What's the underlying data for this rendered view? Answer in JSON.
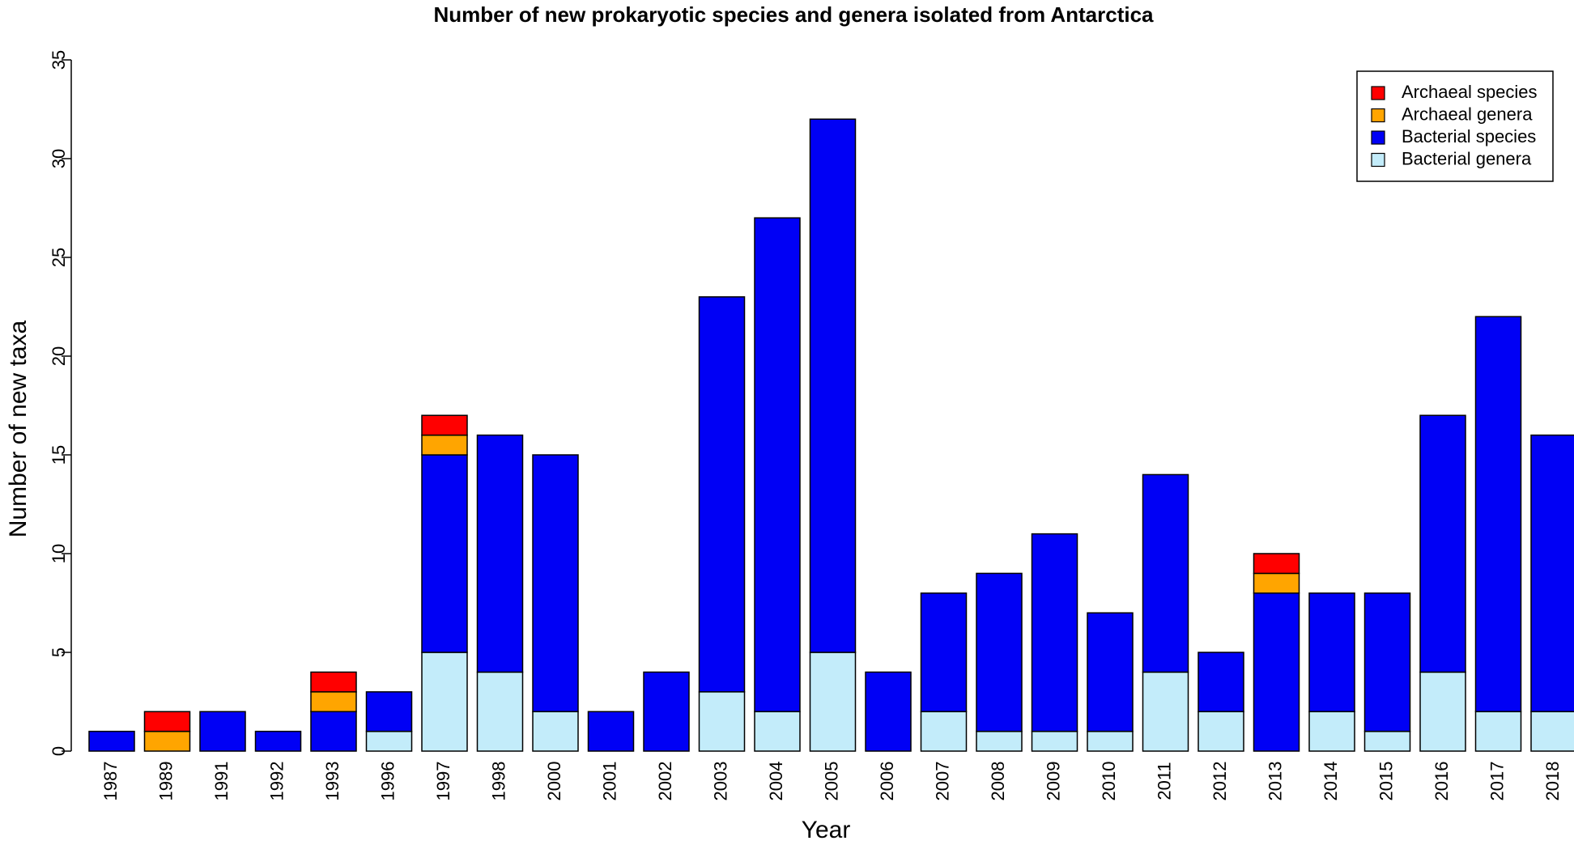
{
  "chart_data": {
    "type": "bar",
    "stacked": true,
    "title": "Number of new prokaryotic species and genera isolated from Antarctica",
    "xlabel": "Year",
    "ylabel": "Number of new taxa",
    "ylim": [
      0,
      35
    ],
    "yticks": [
      0,
      5,
      10,
      15,
      20,
      25,
      30,
      35
    ],
    "grid": false,
    "legend_position": "top-right",
    "categories": [
      "1987",
      "1989",
      "1991",
      "1992",
      "1993",
      "1996",
      "1997",
      "1998",
      "2000",
      "2001",
      "2002",
      "2003",
      "2004",
      "2005",
      "2006",
      "2007",
      "2008",
      "2009",
      "2010",
      "2011",
      "2012",
      "2013",
      "2014",
      "2015",
      "2016",
      "2017",
      "2018"
    ],
    "series": [
      {
        "name": "Bacterial genera",
        "color": "#c3ecfa",
        "values": [
          0,
          0,
          0,
          0,
          0,
          1,
          5,
          4,
          2,
          0,
          0,
          3,
          2,
          5,
          0,
          2,
          1,
          1,
          1,
          4,
          2,
          0,
          2,
          1,
          4,
          2,
          2
        ]
      },
      {
        "name": "Bacterial species",
        "color": "#0000f5",
        "values": [
          1,
          0,
          2,
          1,
          2,
          2,
          10,
          12,
          13,
          2,
          4,
          20,
          25,
          27,
          4,
          6,
          8,
          10,
          6,
          10,
          3,
          8,
          6,
          7,
          13,
          20,
          14
        ]
      },
      {
        "name": "Archaeal genera",
        "color": "#ffa500",
        "values": [
          0,
          1,
          0,
          0,
          1,
          0,
          1,
          0,
          0,
          0,
          0,
          0,
          0,
          0,
          0,
          0,
          0,
          0,
          0,
          0,
          0,
          1,
          0,
          0,
          0,
          0,
          0
        ]
      },
      {
        "name": "Archaeal species",
        "color": "#ff0000",
        "values": [
          0,
          1,
          0,
          0,
          1,
          0,
          1,
          0,
          0,
          0,
          0,
          0,
          0,
          0,
          0,
          0,
          0,
          0,
          0,
          0,
          0,
          1,
          0,
          0,
          0,
          0,
          0
        ]
      }
    ],
    "legend_order": [
      "Archaeal species",
      "Archaeal genera",
      "Bacterial species",
      "Bacterial genera"
    ]
  }
}
